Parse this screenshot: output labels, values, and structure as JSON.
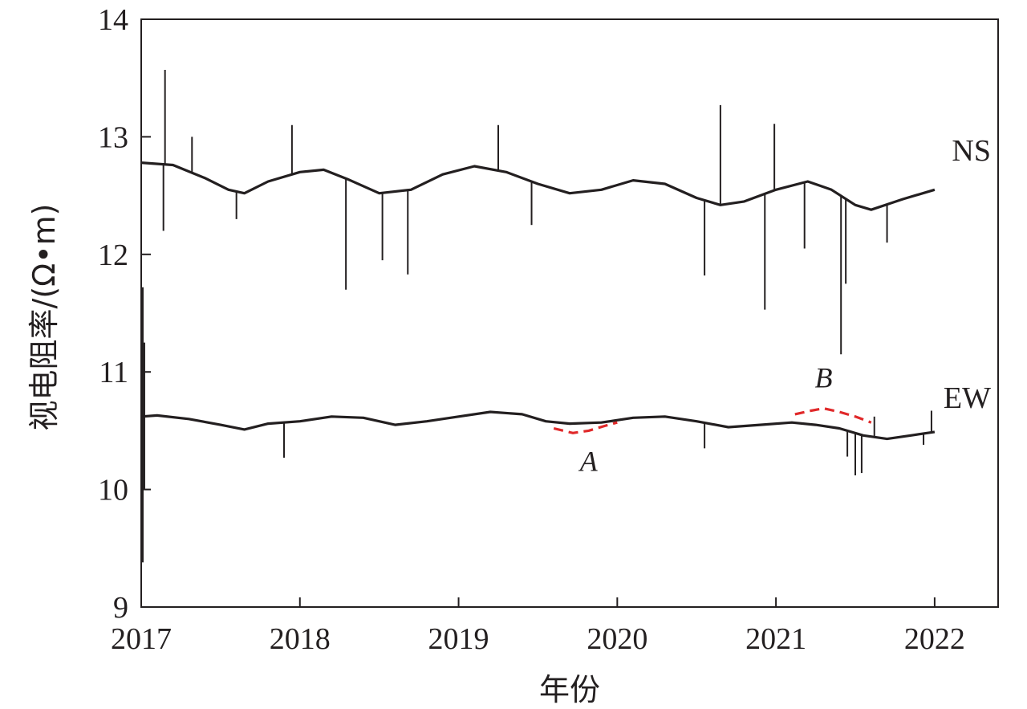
{
  "chart_data": {
    "type": "line",
    "xlabel": "年份",
    "ylabel": "视电阻率/(Ω•m)",
    "xlim": [
      2017,
      2022.4
    ],
    "ylim": [
      9,
      14
    ],
    "x_ticks": [
      "2017",
      "2018",
      "2019",
      "2020",
      "2021",
      "2022"
    ],
    "y_ticks": [
      "9",
      "10",
      "11",
      "12",
      "13",
      "14"
    ],
    "grid": false,
    "series": [
      {
        "name": "NS",
        "color": "#231f20",
        "x": [
          2017.0,
          2017.2,
          2017.4,
          2017.55,
          2017.65,
          2017.8,
          2018.0,
          2018.15,
          2018.3,
          2018.5,
          2018.7,
          2018.9,
          2019.1,
          2019.3,
          2019.5,
          2019.7,
          2019.9,
          2020.1,
          2020.3,
          2020.5,
          2020.65,
          2020.8,
          2021.0,
          2021.2,
          2021.35,
          2021.5,
          2021.6,
          2021.8,
          2022.0
        ],
        "y": [
          12.78,
          12.76,
          12.65,
          12.55,
          12.52,
          12.62,
          12.7,
          12.72,
          12.64,
          12.52,
          12.55,
          12.68,
          12.75,
          12.7,
          12.6,
          12.52,
          12.55,
          12.63,
          12.6,
          12.48,
          12.42,
          12.45,
          12.55,
          12.62,
          12.55,
          12.42,
          12.38,
          12.47,
          12.55
        ],
        "spikes": [
          {
            "x": 2017.15,
            "y": 13.57
          },
          {
            "x": 2017.14,
            "y": 12.2
          },
          {
            "x": 2017.32,
            "y": 13.0
          },
          {
            "x": 2017.6,
            "y": 12.3
          },
          {
            "x": 2017.95,
            "y": 13.1
          },
          {
            "x": 2018.29,
            "y": 11.7
          },
          {
            "x": 2018.52,
            "y": 11.95
          },
          {
            "x": 2018.68,
            "y": 11.83
          },
          {
            "x": 2019.25,
            "y": 13.1
          },
          {
            "x": 2019.46,
            "y": 12.25
          },
          {
            "x": 2020.55,
            "y": 11.82
          },
          {
            "x": 2020.65,
            "y": 13.27
          },
          {
            "x": 2020.93,
            "y": 11.53
          },
          {
            "x": 2020.99,
            "y": 13.11
          },
          {
            "x": 2021.18,
            "y": 12.05
          },
          {
            "x": 2021.41,
            "y": 11.15
          },
          {
            "x": 2021.44,
            "y": 11.75
          },
          {
            "x": 2021.7,
            "y": 12.1
          }
        ]
      },
      {
        "name": "EW",
        "color": "#231f20",
        "x": [
          2017.0,
          2017.1,
          2017.3,
          2017.5,
          2017.65,
          2017.8,
          2018.0,
          2018.2,
          2018.4,
          2018.6,
          2018.8,
          2019.0,
          2019.2,
          2019.4,
          2019.55,
          2019.7,
          2019.9,
          2020.1,
          2020.3,
          2020.5,
          2020.7,
          2020.9,
          2021.1,
          2021.25,
          2021.4,
          2021.55,
          2021.7,
          2021.85,
          2022.0
        ],
        "y": [
          10.62,
          10.63,
          10.6,
          10.55,
          10.51,
          10.56,
          10.58,
          10.62,
          10.61,
          10.55,
          10.58,
          10.62,
          10.66,
          10.64,
          10.58,
          10.56,
          10.57,
          10.61,
          10.62,
          10.58,
          10.53,
          10.55,
          10.57,
          10.55,
          10.52,
          10.46,
          10.43,
          10.46,
          10.49
        ],
        "spikes": [
          {
            "x": 2017.01,
            "y": 9.38
          },
          {
            "x": 2017.01,
            "y": 11.72
          },
          {
            "x": 2017.02,
            "y": 11.25
          },
          {
            "x": 2017.02,
            "y": 10.0
          },
          {
            "x": 2017.9,
            "y": 10.27
          },
          {
            "x": 2020.55,
            "y": 10.35
          },
          {
            "x": 2021.45,
            "y": 10.28
          },
          {
            "x": 2021.5,
            "y": 10.12
          },
          {
            "x": 2021.54,
            "y": 10.14
          },
          {
            "x": 2021.62,
            "y": 10.62
          },
          {
            "x": 2021.98,
            "y": 10.67
          },
          {
            "x": 2021.93,
            "y": 10.38
          }
        ]
      }
    ],
    "anomalies": [
      {
        "label": "A",
        "color": "#e0292a",
        "x": [
          2019.6,
          2019.72,
          2019.82,
          2019.92,
          2020.0
        ],
        "y": [
          10.52,
          10.48,
          10.5,
          10.54,
          10.57
        ]
      },
      {
        "label": "B",
        "color": "#e0292a",
        "x": [
          2021.12,
          2021.22,
          2021.3,
          2021.4,
          2021.5,
          2021.6
        ],
        "y": [
          10.64,
          10.67,
          10.69,
          10.66,
          10.62,
          10.57
        ]
      }
    ]
  }
}
